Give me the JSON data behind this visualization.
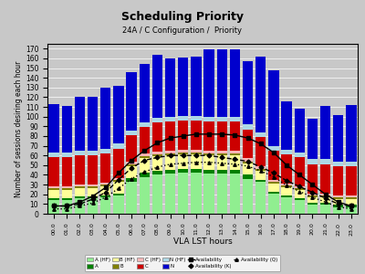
{
  "title": "Scheduling Priority",
  "subtitle": "24A / C Configuration /  Priority",
  "xlabel": "VLA LST hours",
  "ylabel": "Number of sessions desiring each hour",
  "hours": [
    "00.0",
    "01.0",
    "02.0",
    "03.0",
    "04.0",
    "05.0",
    "06.0",
    "07.0",
    "08.0",
    "09.0",
    "10.0",
    "11.0",
    "12.0",
    "13.0",
    "14.0",
    "15.0",
    "16.0",
    "17.0",
    "18.0",
    "19.0",
    "20.0",
    "21.0",
    "22.0",
    "23.0"
  ],
  "A_HF": [
    14,
    14,
    16,
    16,
    17,
    19,
    33,
    38,
    40,
    41,
    42,
    42,
    41,
    41,
    41,
    36,
    33,
    21,
    17,
    14,
    9,
    9,
    7,
    7
  ],
  "A": [
    2,
    2,
    2,
    2,
    2,
    2,
    4,
    4,
    4,
    4,
    4,
    4,
    4,
    4,
    4,
    4,
    2,
    2,
    2,
    2,
    2,
    2,
    2,
    2
  ],
  "B_HF": [
    8,
    8,
    8,
    8,
    9,
    12,
    12,
    15,
    15,
    15,
    15,
    15,
    15,
    15,
    15,
    12,
    9,
    8,
    8,
    8,
    6,
    6,
    6,
    6
  ],
  "B": [
    2,
    2,
    2,
    2,
    2,
    2,
    2,
    2,
    2,
    2,
    2,
    2,
    2,
    2,
    2,
    2,
    2,
    2,
    2,
    2,
    2,
    2,
    2,
    2
  ],
  "C_HF": [
    2,
    2,
    2,
    2,
    2,
    2,
    3,
    3,
    3,
    3,
    3,
    3,
    3,
    3,
    3,
    3,
    3,
    2,
    2,
    2,
    2,
    2,
    2,
    2
  ],
  "C": [
    30,
    30,
    30,
    30,
    30,
    30,
    27,
    27,
    30,
    30,
    30,
    30,
    30,
    30,
    30,
    30,
    30,
    30,
    30,
    30,
    30,
    30,
    30,
    30
  ],
  "N_HF": [
    5,
    5,
    5,
    5,
    5,
    5,
    5,
    5,
    5,
    5,
    5,
    5,
    5,
    5,
    5,
    5,
    5,
    5,
    5,
    5,
    5,
    5,
    5,
    5
  ],
  "N": [
    50,
    48,
    55,
    55,
    63,
    60,
    60,
    60,
    65,
    60,
    60,
    61,
    69,
    69,
    69,
    65,
    78,
    78,
    50,
    45,
    42,
    55,
    48,
    58
  ],
  "avail": [
    8,
    8,
    12,
    18,
    27,
    42,
    55,
    65,
    73,
    78,
    80,
    82,
    82,
    82,
    81,
    78,
    72,
    63,
    50,
    40,
    30,
    20,
    12,
    8
  ],
  "avail_K": [
    8,
    8,
    10,
    15,
    22,
    35,
    47,
    55,
    58,
    60,
    60,
    60,
    60,
    58,
    56,
    54,
    48,
    42,
    34,
    28,
    22,
    16,
    10,
    8
  ],
  "avail_Q": [
    5,
    5,
    8,
    11,
    17,
    26,
    36,
    43,
    48,
    51,
    52,
    53,
    53,
    52,
    51,
    49,
    44,
    38,
    29,
    23,
    17,
    12,
    7,
    5
  ],
  "color_A_HF": "#90EE90",
  "color_A": "#008000",
  "color_B_HF": "#FFFF99",
  "color_B": "#808000",
  "color_C_HF": "#FFB6B6",
  "color_C": "#CC0000",
  "color_N_HF": "#ADD8E6",
  "color_N": "#0000CD",
  "ylim": [
    0,
    175
  ],
  "yticks": [
    0,
    10,
    20,
    30,
    40,
    50,
    60,
    70,
    80,
    90,
    100,
    110,
    120,
    130,
    140,
    150,
    160,
    170
  ],
  "bg_color": "#C8C8C8",
  "fig_bg_color": "#C8C8C8"
}
